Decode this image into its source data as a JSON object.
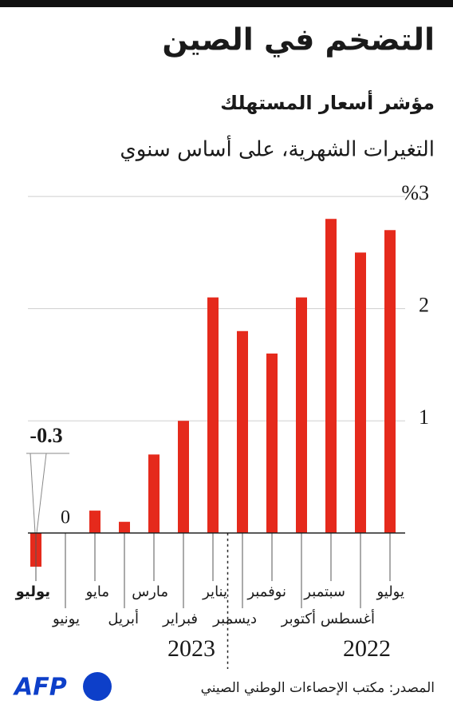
{
  "chart_data": {
    "type": "bar",
    "title": "التضخم في الصين",
    "subtitle": "مؤشر أسعار المستهلك",
    "description": "التغيرات الشهرية، على أساس سنوي",
    "categories": [
      "يوليو",
      "أغسطس",
      "سبتمبر",
      "أكتوبر",
      "نوفمبر",
      "ديسمبر",
      "يناير",
      "فبراير",
      "مارس",
      "أبريل",
      "مايو",
      "يونيو",
      "يوليو"
    ],
    "values": [
      2.7,
      2.5,
      2.8,
      2.1,
      1.6,
      1.8,
      2.1,
      1.0,
      0.7,
      0.1,
      0.2,
      0,
      -0.3
    ],
    "value_labels": [
      null,
      null,
      null,
      null,
      null,
      null,
      null,
      null,
      null,
      null,
      null,
      "0",
      "-0.3"
    ],
    "color": "#e52a1c",
    "ylim": [
      -0.4,
      3.2
    ],
    "yticks": [
      1,
      2,
      {
        "value": 3,
        "label": "%3"
      }
    ],
    "grid": true,
    "years": [
      "2022",
      "2023"
    ],
    "source": "المصدر: مكتب الإحصاءات الوطني الصيني",
    "logo": "AFP"
  }
}
